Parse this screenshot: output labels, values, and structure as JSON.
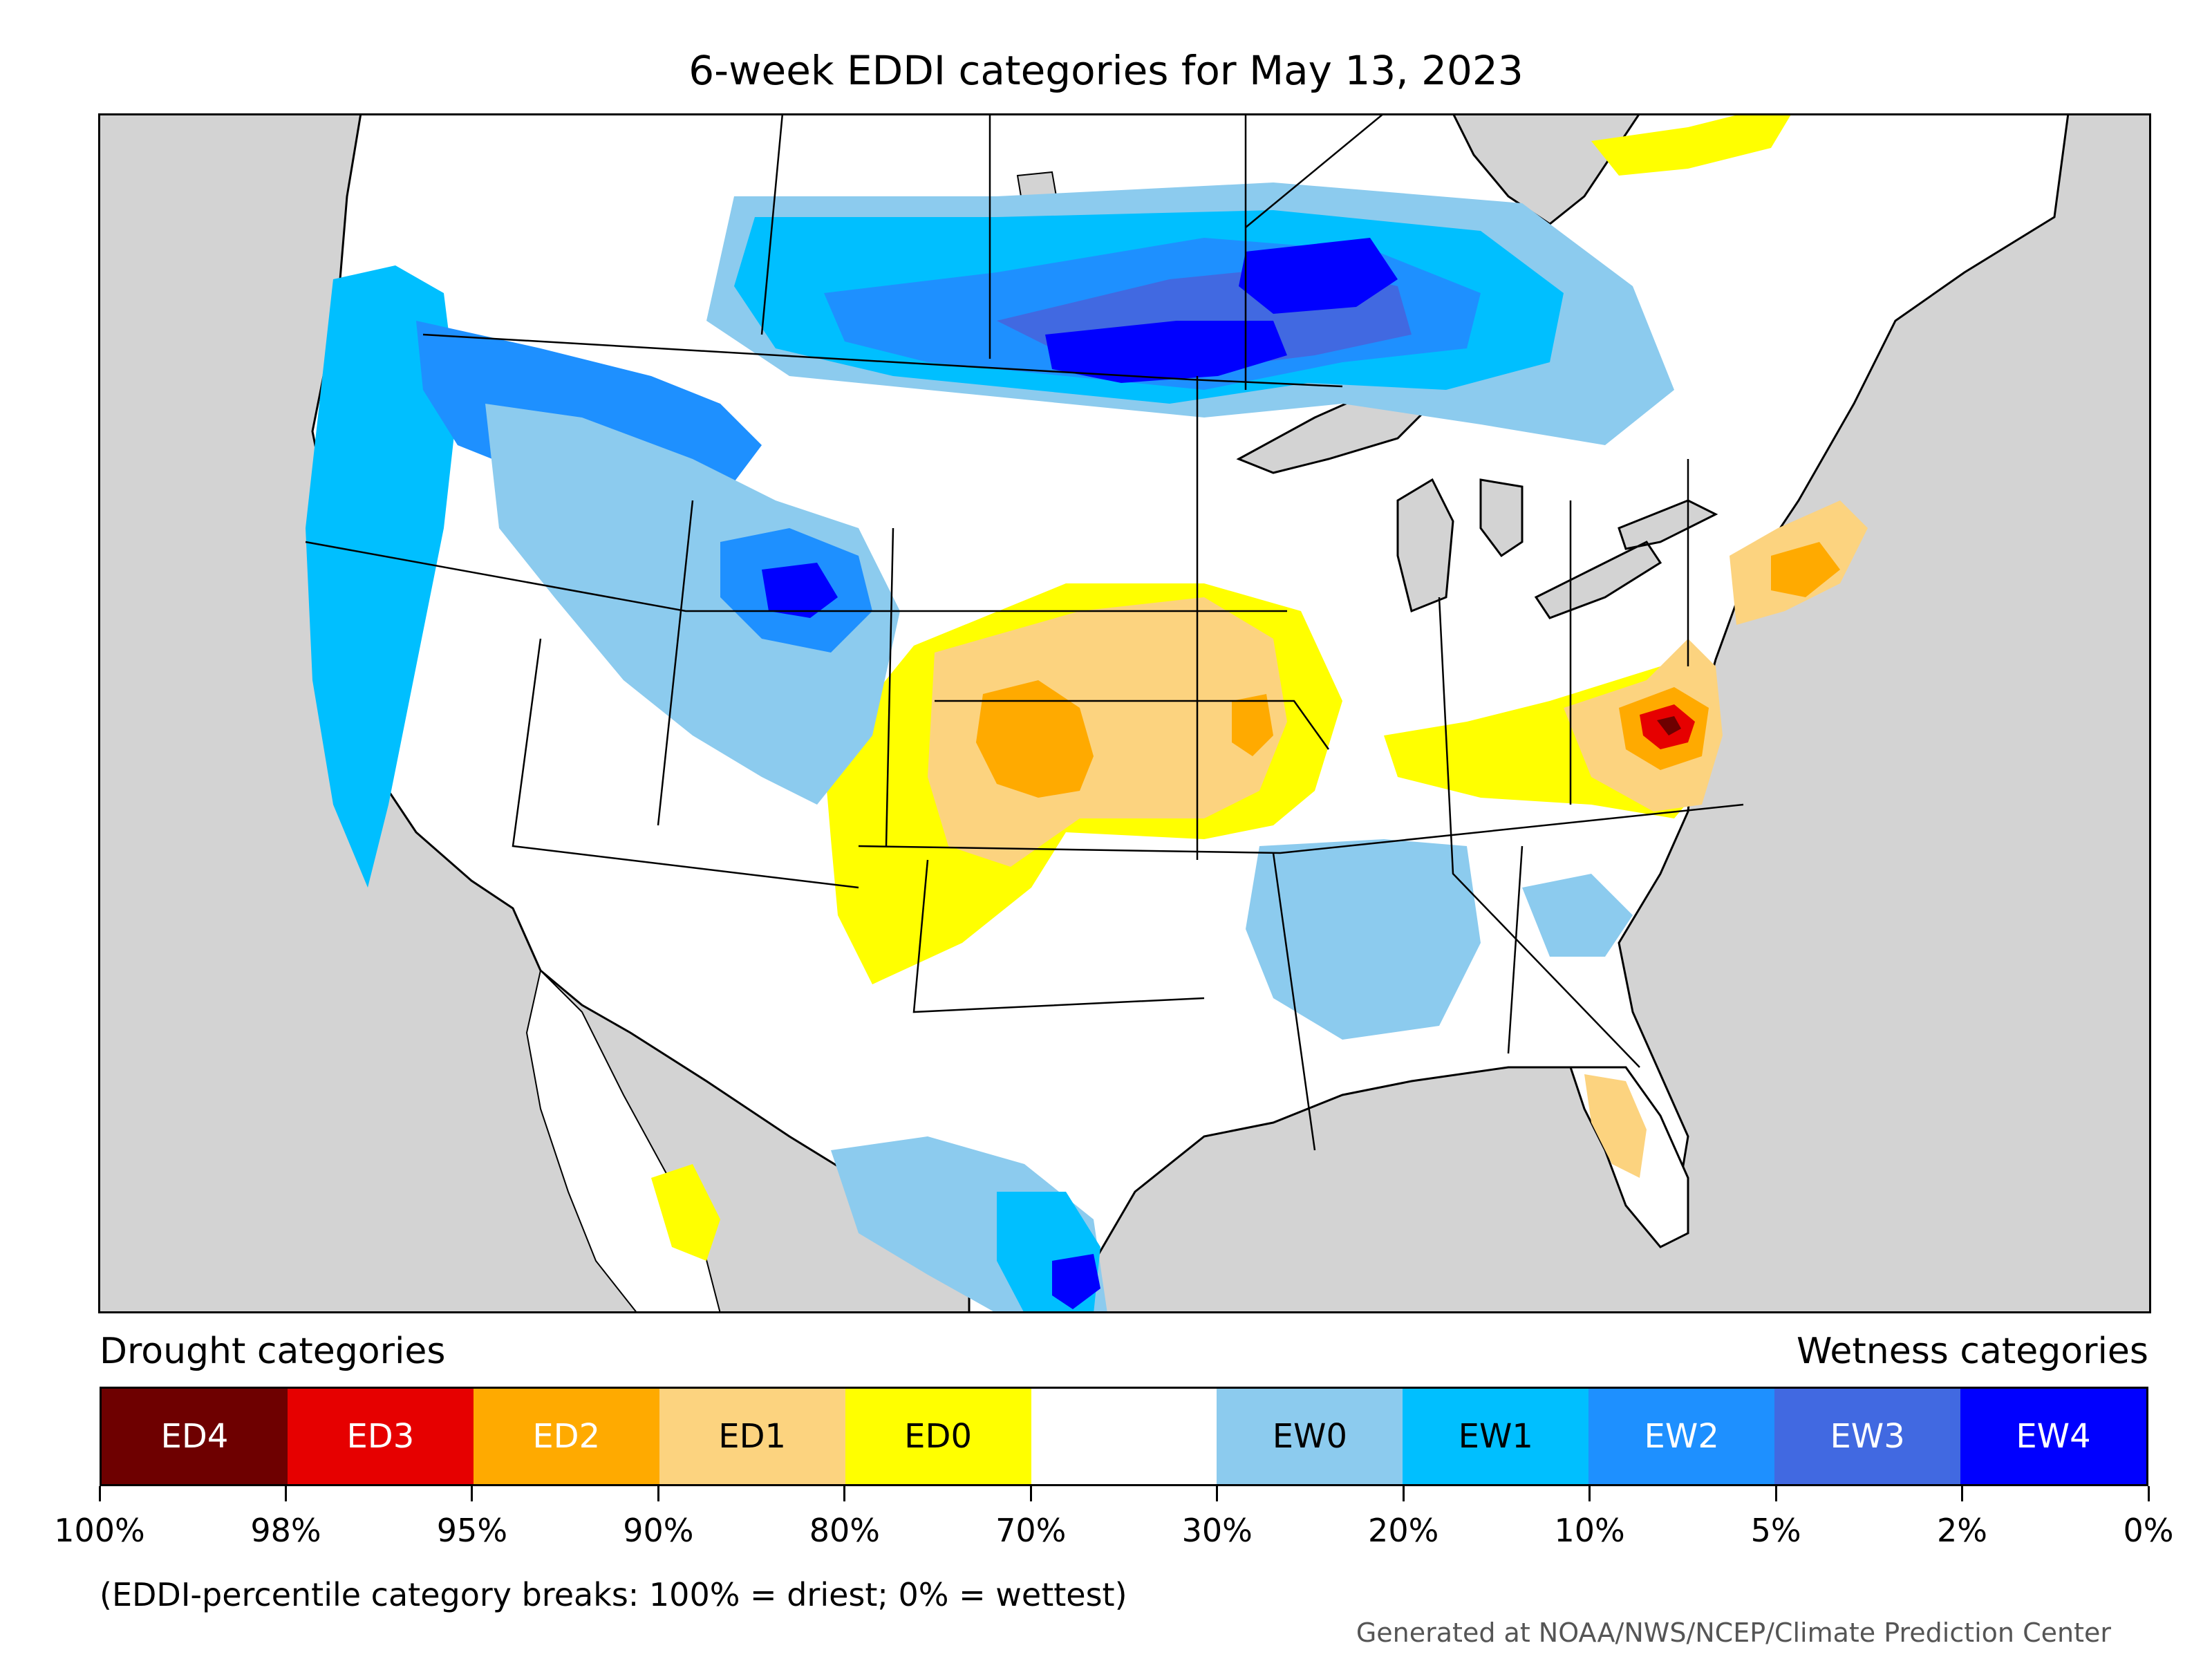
{
  "title": "6-week EDDI categories for May 13, 2023",
  "legend": {
    "drought_title": "Drought categories",
    "wetness_title": "Wetness categories",
    "categories": [
      {
        "label": "ED4",
        "color": "#6e0000",
        "text_color": "#ffffff"
      },
      {
        "label": "ED3",
        "color": "#e60000",
        "text_color": "#ffffff"
      },
      {
        "label": "ED2",
        "color": "#ffaa00",
        "text_color": "#ffffff"
      },
      {
        "label": "ED1",
        "color": "#fcd37f",
        "text_color": "#000000"
      },
      {
        "label": "ED0",
        "color": "#ffff00",
        "text_color": "#000000"
      },
      {
        "label": "",
        "color": "#ffffff",
        "text_color": "#000000"
      },
      {
        "label": "EW0",
        "color": "#8ccbee",
        "text_color": "#000000"
      },
      {
        "label": "EW1",
        "color": "#00bfff",
        "text_color": "#000000"
      },
      {
        "label": "EW2",
        "color": "#1e90ff",
        "text_color": "#ffffff"
      },
      {
        "label": "EW3",
        "color": "#4169e1",
        "text_color": "#ffffff"
      },
      {
        "label": "EW4",
        "color": "#0000ff",
        "text_color": "#ffffff"
      }
    ],
    "breaks": [
      "100%",
      "98%",
      "95%",
      "90%",
      "80%",
      "70%",
      "30%",
      "20%",
      "10%",
      "5%",
      "2%",
      "0%"
    ]
  },
  "note": "(EDDI-percentile category breaks: 100% = driest; 0% = wettest)",
  "credit": "Generated at NOAA/NWS/NCEP/Climate Prediction Center",
  "map_colors": {
    "ocean": "#d3d3d3",
    "land": "#ffffff",
    "border": "#000000"
  }
}
